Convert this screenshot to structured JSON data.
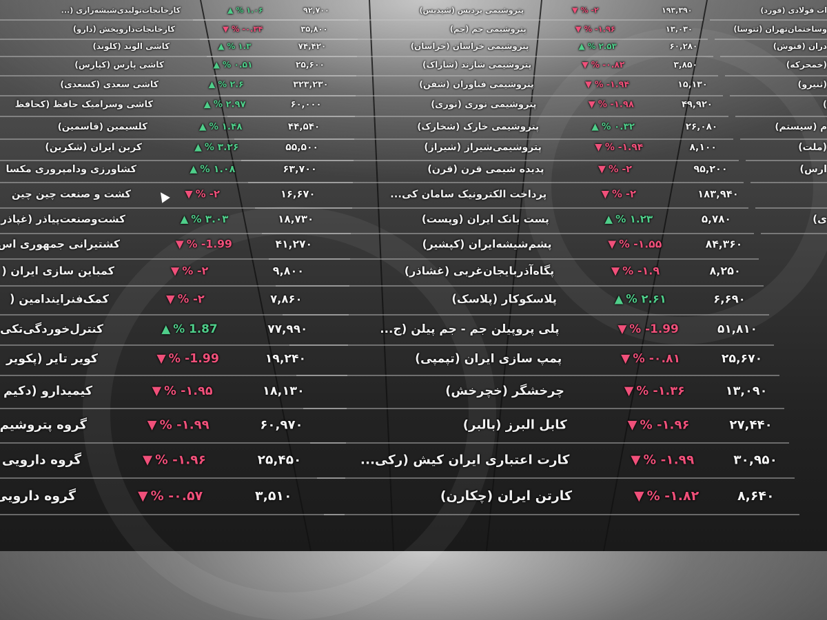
{
  "colors": {
    "up": "#4fce8a",
    "down": "#f0507a",
    "background": "#2a2a2a"
  },
  "columns": [
    {
      "rows": [
        {
          "name": "کارخانجات‌تولیدی‌شیشه‌رازی (...",
          "dir": "up",
          "pct": "% ۱.۰۶",
          "price": "۹۲,۷۰۰"
        },
        {
          "name": "کارخانجات‌داروپخش (دارو)",
          "dir": "down",
          "pct": "% -۰.۳۴",
          "price": "۳۵,۸۰۰"
        },
        {
          "name": "کاشی الوند (کلوند)",
          "dir": "up",
          "pct": "% ۱.۳",
          "price": "۷۴,۴۲۰"
        },
        {
          "name": "کاشی پارس (کپارس)",
          "dir": "up",
          "pct": "% ۰.۵۱",
          "price": "۲۵,۶۰۰"
        },
        {
          "name": "کاشی سعدی (کسعدی)",
          "dir": "up",
          "pct": "% ۲.۶",
          "price": "۳۲۳,۲۳۰"
        },
        {
          "name": "کاشی وسرامیک حافظ (کحافظ",
          "dir": "up",
          "pct": "% ۲.۹۷",
          "price": "۶۰,۰۰۰"
        },
        {
          "name": "کلسیمین (فاسمین)",
          "dir": "up",
          "pct": "% ۱.۴۸",
          "price": "۴۴,۵۴۰"
        },
        {
          "name": "کربن ایران (شکربن)",
          "dir": "up",
          "pct": "% ۳.۲۶",
          "price": "۵۵,۵۰۰"
        },
        {
          "name": "کشاورزی ودامپروری مکسا",
          "dir": "up",
          "pct": "% ۱.۰۸",
          "price": "۶۳,۷۰۰"
        },
        {
          "name": "کشت و صنعت چین چین",
          "dir": "down",
          "pct": "% -۲",
          "price": "۱۶,۶۷۰"
        },
        {
          "name": "کشت‌وصنعت‌پیاذر (غپاذر",
          "dir": "up",
          "pct": "% ۳.۰۳",
          "price": "۱۸,۷۳۰"
        },
        {
          "name": "کشتیرانی جمهوری اس",
          "dir": "down",
          "pct": "% -1.99",
          "price": "۴۱,۲۷۰"
        },
        {
          "name": "کمباین سازی ایران (",
          "dir": "down",
          "pct": "% -۲",
          "price": "۹,۸۰۰"
        },
        {
          "name": "کمک‌فنرایندامین (",
          "dir": "down",
          "pct": "% -۲",
          "price": "۷,۸۶۰"
        },
        {
          "name": "کنترل‌خوردگی‌تکی",
          "dir": "up",
          "pct": "% 1.87",
          "price": "۷۷,۹۹۰"
        },
        {
          "name": "کویر تایر (پکویر",
          "dir": "down",
          "pct": "% -1.99",
          "price": "۱۹,۲۴۰"
        },
        {
          "name": "کیمیدارو (دکیم",
          "dir": "down",
          "pct": "% -۱.۹۵",
          "price": "۱۸,۱۳۰"
        },
        {
          "name": "گروه پتروشیم",
          "dir": "down",
          "pct": "% -۱.۹۹",
          "price": "۶۰,۹۷۰"
        },
        {
          "name": "گروه دارویی",
          "dir": "down",
          "pct": "% -۱.۹۶",
          "price": "۲۵,۴۵۰"
        },
        {
          "name": "گروه دارویی",
          "dir": "down",
          "pct": "% -۰.۵۷",
          "price": "۳,۵۱۰"
        }
      ]
    },
    {
      "rows": [
        {
          "name": "پتروشیمی پردیس (شپدیس)",
          "dir": "down",
          "pct": "% -۲",
          "price": "۱۹۳,۳۹۰"
        },
        {
          "name": "پتروشیمی جم (جم)",
          "dir": "down",
          "pct": "% -۱.۹۶",
          "price": "۱۳,۰۳۰"
        },
        {
          "name": "پتروشیمی خراسان (خراسان)",
          "dir": "up",
          "pct": "% ۲.۵۳",
          "price": "۶۰,۲۸۰"
        },
        {
          "name": "پتروشیمی شازند (شاراک)",
          "dir": "down",
          "pct": "% -۰.۸۲",
          "price": "۳,۸۵۰"
        },
        {
          "name": "پتروشیمی فناوران (شفن)",
          "dir": "down",
          "pct": "% -۱.۹۴",
          "price": "۱۵,۱۳۰"
        },
        {
          "name": "پتروشیمی نوری (نوری)",
          "dir": "down",
          "pct": "% -۱.۹۸",
          "price": "۴۹,۹۲۰"
        },
        {
          "name": "پتروشیمی خارک (شخارک)",
          "dir": "up",
          "pct": "% ۰.۳۲",
          "price": "۲۶,۰۸۰"
        },
        {
          "name": "پتروشیمی‌شیراز (شیراز)",
          "dir": "down",
          "pct": "% -۱.۹۴",
          "price": "۸,۱۰۰"
        },
        {
          "name": "پدیده شیمی قرن (قرن)",
          "dir": "down",
          "pct": "% -۲",
          "price": "۹۵,۲۰۰"
        },
        {
          "name": "پرداخت الکترونیک سامان کی...",
          "dir": "down",
          "pct": "% -۲",
          "price": "۱۸۳,۹۴۰"
        },
        {
          "name": "پست بانک ایران (وپست)",
          "dir": "up",
          "pct": "% ۱.۲۳",
          "price": "۵,۷۸۰"
        },
        {
          "name": "پشم‌شیشه‌ایران (کپشیر)",
          "dir": "down",
          "pct": "% -۱.۵۵",
          "price": "۸۴,۳۶۰"
        },
        {
          "name": "پگاه‌آذربایجان‌غربی (غشاذر)",
          "dir": "down",
          "pct": "% -۱.۹",
          "price": "۸,۲۵۰"
        },
        {
          "name": "پلاسکوکار (پلاسک)",
          "dir": "up",
          "pct": "% ۲.۶۱",
          "price": "۶,۶۹۰"
        },
        {
          "name": "پلی پروپیلن جم - جم پیلن (ج...",
          "dir": "down",
          "pct": "% -1.99",
          "price": "۵۱,۸۱۰"
        },
        {
          "name": "پمپ سازی ایران (تپمپی)",
          "dir": "down",
          "pct": "% -۰.۸۱",
          "price": "۲۵,۶۷۰"
        },
        {
          "name": "چرخشگر (خچرخش)",
          "dir": "down",
          "pct": "% -۱.۳۶",
          "price": "۱۳,۰۹۰"
        },
        {
          "name": "کابل البرز (بالبر)",
          "dir": "down",
          "pct": "% -۱.۹۶",
          "price": "۲۷,۴۴۰"
        },
        {
          "name": "کارت اعتباری ایران کیش (رکی...",
          "dir": "down",
          "pct": "% -۱.۹۹",
          "price": "۳۰,۹۵۰"
        },
        {
          "name": "کارتن ایران (چکارن)",
          "dir": "down",
          "pct": "% -۱.۸۲",
          "price": "۸,۶۴۰"
        }
      ]
    },
    {
      "rows": [
        {
          "name": "ات فولادی (فورد)"
        },
        {
          "name": "وساختمان‌تهران (ثتوسا)"
        },
        {
          "name": "دران (فنوش)"
        },
        {
          "name": "(خمحرکه)"
        },
        {
          "name": "(ثنیرو)"
        },
        {
          "name": ")"
        },
        {
          "name": "م (سیستم)"
        },
        {
          "name": "(ملت)"
        },
        {
          "name": "ارس)"
        },
        {
          "name": ""
        },
        {
          "name": "ی)"
        }
      ]
    }
  ]
}
